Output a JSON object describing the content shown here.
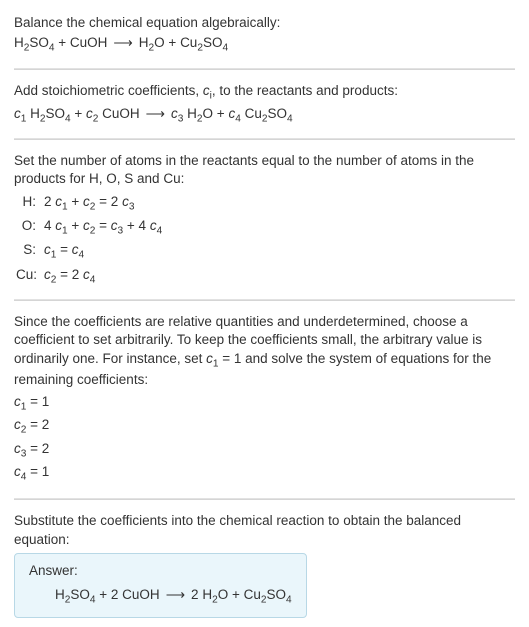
{
  "colors": {
    "text": "#333333",
    "divider_top": "#e9e9e9",
    "divider_bottom": "#cfcfcf",
    "answer_bg": "#eaf6fb",
    "answer_border": "#b8d8e6",
    "background": "#ffffff"
  },
  "fontsize_pt": 10,
  "sections": {
    "balance": {
      "title": "Balance the chemical equation algebraically:",
      "lhs1": "H",
      "lhs1_sub": "2",
      "lhs1b": "SO",
      "lhs1b_sub": "4",
      "plus": " + ",
      "lhs2": "CuOH",
      "arrow": "⟶",
      "rhs1": "H",
      "rhs1_sub": "2",
      "rhs1b": "O",
      "rhs2": "Cu",
      "rhs2_sub": "2",
      "rhs2b": "SO",
      "rhs2b_sub": "4"
    },
    "stoich": {
      "title_a": "Add stoichiometric coefficients, ",
      "title_ci": "c",
      "title_ci_sub": "i",
      "title_b": ", to the reactants and products:",
      "c1": "c",
      "c1_sub": "1",
      "c2": "c",
      "c2_sub": "2",
      "c3": "c",
      "c3_sub": "3",
      "c4": "c",
      "c4_sub": "4",
      "sp1": " H",
      "sp1_sub": "2",
      "sp1b": "SO",
      "sp1b_sub": "4",
      "sp2": " CuOH",
      "sp3": " H",
      "sp3_sub": "2",
      "sp3b": "O",
      "sp4": " Cu",
      "sp4_sub": "2",
      "sp4b": "SO",
      "sp4b_sub": "4"
    },
    "atoms": {
      "title": "Set the number of atoms in the reactants equal to the number of atoms in the products for H, O, S and Cu:",
      "rows": [
        {
          "label": "H:",
          "lhs_a": "2 ",
          "lhs_c": "c",
          "lhs_c_sub": "1",
          "lhs_b": " + ",
          "lhs_c2": "c",
          "lhs_c2_sub": "2",
          "eq": " = ",
          "rhs_a": "2 ",
          "rhs_c": "c",
          "rhs_c_sub": "3"
        },
        {
          "label": "O:",
          "lhs_a": "4 ",
          "lhs_c": "c",
          "lhs_c_sub": "1",
          "lhs_b": " + ",
          "lhs_c2": "c",
          "lhs_c2_sub": "2",
          "eq": " = ",
          "rhs_c": "c",
          "rhs_c_sub": "3",
          "rhs_b": " + 4 ",
          "rhs_c2": "c",
          "rhs_c2_sub": "4"
        },
        {
          "label": "S:",
          "lhs_c": "c",
          "lhs_c_sub": "1",
          "eq": " = ",
          "rhs_c": "c",
          "rhs_c_sub": "4"
        },
        {
          "label": "Cu:",
          "lhs_c": "c",
          "lhs_c_sub": "2",
          "eq": " = ",
          "rhs_a": "2 ",
          "rhs_c": "c",
          "rhs_c_sub": "4"
        }
      ]
    },
    "choose": {
      "text_a": "Since the coefficients are relative quantities and underdetermined, choose a coefficient to set arbitrarily. To keep the coefficients small, the arbitrary value is ordinarily one. For instance, set ",
      "c": "c",
      "c_sub": "1",
      "text_b": " = 1 and solve the system of equations for the remaining coefficients:",
      "assignments": [
        {
          "c": "c",
          "sub": "1",
          "eq": " = ",
          "val": "1"
        },
        {
          "c": "c",
          "sub": "2",
          "eq": " = ",
          "val": "2"
        },
        {
          "c": "c",
          "sub": "3",
          "eq": " = ",
          "val": "2"
        },
        {
          "c": "c",
          "sub": "4",
          "eq": " = ",
          "val": "1"
        }
      ]
    },
    "substitute": {
      "text": "Substitute the coefficients into the chemical reaction to obtain the balanced equation:"
    },
    "answer": {
      "label": "Answer:",
      "lhs1": "H",
      "lhs1_sub": "2",
      "lhs1b": "SO",
      "lhs1b_sub": "4",
      "plus": " + ",
      "coef_lhs2": "2 ",
      "lhs2": "CuOH",
      "arrow": "⟶",
      "coef_rhs1": "2 ",
      "rhs1": "H",
      "rhs1_sub": "2",
      "rhs1b": "O",
      "rhs2": "Cu",
      "rhs2_sub": "2",
      "rhs2b": "SO",
      "rhs2b_sub": "4"
    }
  }
}
